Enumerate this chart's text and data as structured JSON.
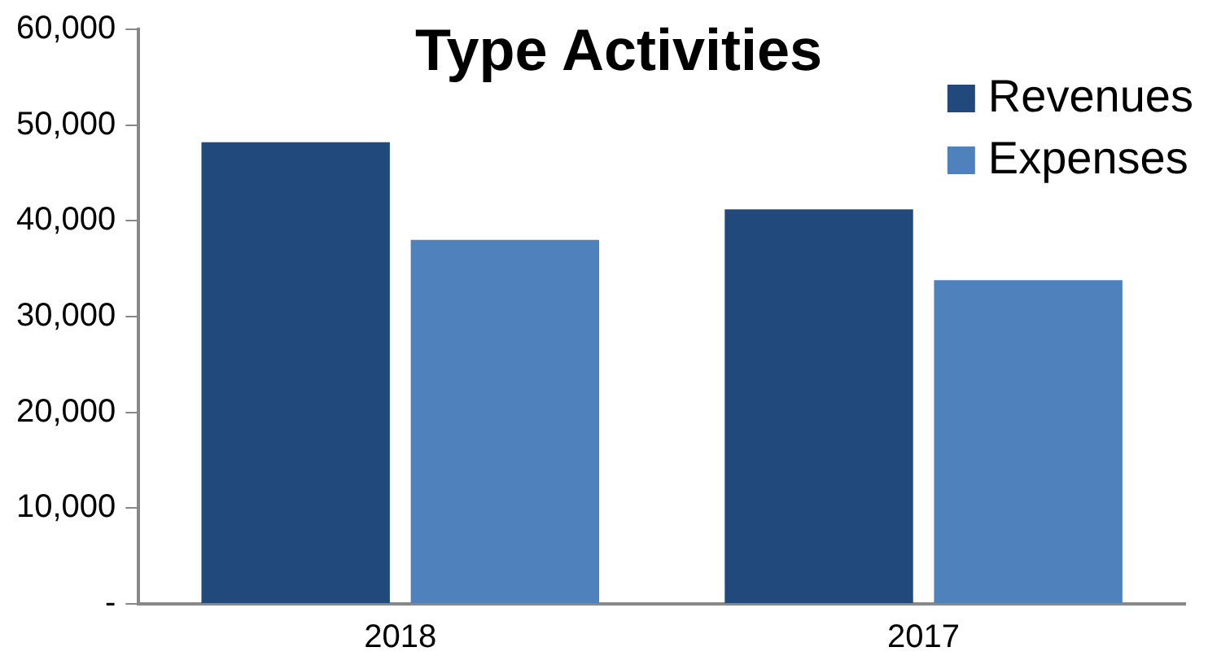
{
  "chart_data": {
    "type": "bar",
    "title": "Type Activities",
    "categories": [
      "2018",
      "2017"
    ],
    "series": [
      {
        "name": "Revenues",
        "color": "#21497c",
        "values": [
          48200,
          41200
        ]
      },
      {
        "name": "Expenses",
        "color": "#4f81bd",
        "values": [
          38000,
          33800
        ]
      }
    ],
    "ylim": [
      0,
      60000
    ],
    "yticks": [
      {
        "value": 0,
        "label": "-"
      },
      {
        "value": 10000,
        "label": "10,000"
      },
      {
        "value": 20000,
        "label": "20,000"
      },
      {
        "value": 30000,
        "label": "30,000"
      },
      {
        "value": 40000,
        "label": "40,000"
      },
      {
        "value": 50000,
        "label": "50,000"
      },
      {
        "value": 60000,
        "label": "60,000"
      }
    ],
    "grid": false,
    "legend": "top right"
  }
}
